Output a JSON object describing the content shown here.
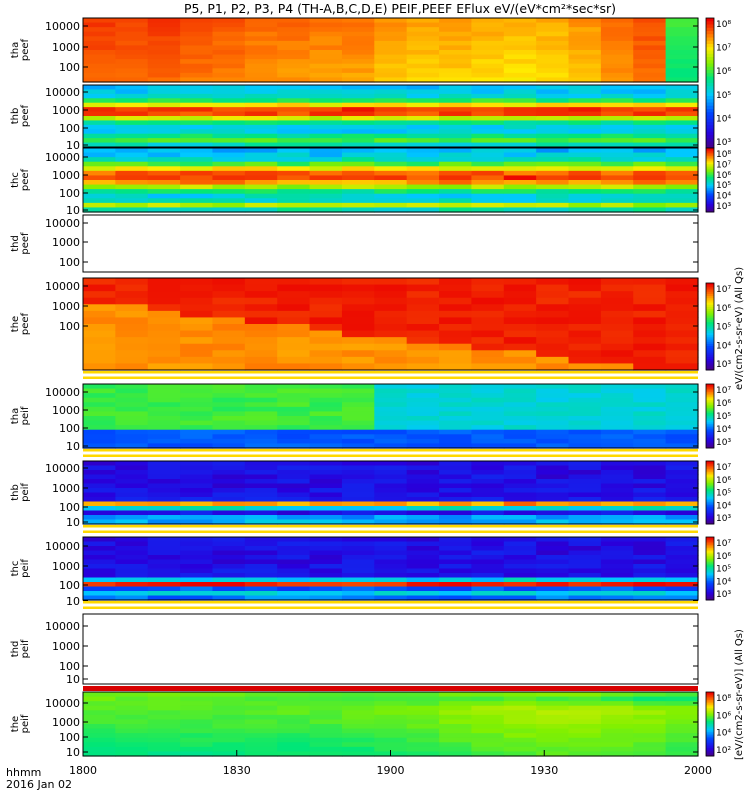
{
  "title": "P5, P1, P2, P3, P4 (TH-A,B,C,D,E) PEIF,PEEF EFlux eV/(eV*cm²*sec*sr)",
  "time_axis": {
    "label_line1": "hhmm",
    "label_line2": "2016 Jan 02",
    "ticks": [
      "1800",
      "1830",
      "1900",
      "1930",
      "2000"
    ]
  },
  "colorbar_unit_label": "[eV/(cm2-s-sr-eV)] (All Qs)",
  "colorbar_unit_label_upper": "eV/(cm2-s-sr-eV) (All Qs)",
  "chart_data": {
    "type": "heatmap",
    "x_range": [
      "18:00",
      "20:00"
    ],
    "x_ticks": [
      "1800",
      "1830",
      "1900",
      "1930",
      "2000"
    ],
    "y_scale": "log",
    "colormap": "rainbow (purple-blue-cyan-green-yellow-red)",
    "panels": [
      {
        "ylabel": [
          "tha",
          "peef"
        ],
        "y_ticks": [
          "10000",
          "1000",
          "100"
        ],
        "has_data": true,
        "colorbar_ticks": [
          "10⁸",
          "10⁷",
          "10⁶",
          "10⁵",
          "10⁴",
          "10³"
        ],
        "level_by_time": [
          0.95,
          0.94,
          0.95,
          0.93,
          0.92,
          0.9,
          0.9,
          0.89,
          0.89,
          0.86,
          0.85,
          0.85,
          0.84,
          0.83,
          0.84,
          0.86,
          0.9,
          0.93,
          0.6
        ]
      },
      {
        "ylabel": [
          "thb",
          "peef"
        ],
        "y_ticks": [
          "10000",
          "1000",
          "100",
          "10"
        ],
        "has_data": true,
        "colorbar_ticks": [
          "10⁸",
          "10⁷",
          "10⁶",
          "10⁵",
          "10⁴",
          "10³"
        ]
      },
      {
        "ylabel": [
          "thc",
          "peef"
        ],
        "y_ticks": [
          "10000",
          "1000",
          "100",
          "10"
        ],
        "has_data": true,
        "colorbar_ticks": [
          "10⁸",
          "10⁷",
          "10⁶",
          "10⁵",
          "10⁴",
          "10³"
        ]
      },
      {
        "ylabel": [
          "thd",
          "peef"
        ],
        "y_ticks": [
          "10000",
          "1000",
          "100"
        ],
        "has_data": false
      },
      {
        "ylabel": [
          "the",
          "peef"
        ],
        "y_ticks": [
          "10000",
          "1000",
          "100"
        ],
        "has_data": true,
        "colorbar_ticks": [
          "10⁷",
          "10⁶",
          "10⁵",
          "10⁴",
          "10³"
        ]
      },
      {
        "ylabel": [
          "tha",
          "peif"
        ],
        "y_ticks": [
          "10000",
          "1000",
          "100",
          "10"
        ],
        "has_data": true,
        "colorbar_ticks": [
          "10⁷",
          "10⁶",
          "10⁵",
          "10⁴",
          "10³"
        ]
      },
      {
        "ylabel": [
          "thb",
          "peif"
        ],
        "y_ticks": [
          "10000",
          "1000",
          "100",
          "10"
        ],
        "has_data": true,
        "colorbar_ticks": [
          "10⁷",
          "10⁶",
          "10⁵",
          "10⁴",
          "10³"
        ]
      },
      {
        "ylabel": [
          "thc",
          "peif"
        ],
        "y_ticks": [
          "10000",
          "1000",
          "100",
          "10"
        ],
        "has_data": true,
        "colorbar_ticks": [
          "10⁷",
          "10⁶",
          "10⁵",
          "10⁴",
          "10³"
        ]
      },
      {
        "ylabel": [
          "thd",
          "peif"
        ],
        "y_ticks": [
          "10000",
          "1000",
          "100",
          "10"
        ],
        "has_data": false
      },
      {
        "ylabel": [
          "the",
          "peif"
        ],
        "y_ticks": [
          "10000",
          "1000",
          "100",
          "10"
        ],
        "has_data": true,
        "colorbar_ticks": [
          "10⁸",
          "10⁶",
          "10⁴",
          "10²"
        ]
      }
    ]
  }
}
